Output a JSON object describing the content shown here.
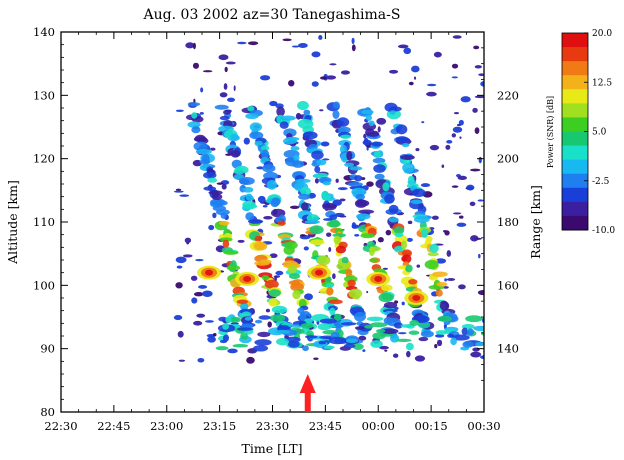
{
  "chart_data": {
    "type": "heatmap",
    "title": "Aug. 03 2002  az=30 Tanegashima-S",
    "xlabel": "Time [LT]",
    "ylabel": "Altitude [km]",
    "y2label": "Range [km]",
    "x_ticks": [
      "22:30",
      "22:45",
      "23:00",
      "23:15",
      "23:30",
      "23:45",
      "00:00",
      "00:15",
      "00:30"
    ],
    "xlim_hours": [
      22.5,
      24.5
    ],
    "y_ticks": [
      80,
      90,
      100,
      110,
      120,
      130,
      140
    ],
    "ylim": [
      80,
      140
    ],
    "y2_ticks": [
      140,
      160,
      180,
      200,
      220
    ],
    "colorbar": {
      "label": "Power (SNR) [dB]",
      "range": [
        -10,
        20
      ],
      "tick_labels": [
        "20.0",
        "12.5",
        "5.0",
        "-2.5",
        "-10.0"
      ],
      "tick_values": [
        20,
        12.5,
        5,
        -2.5,
        -10
      ],
      "colors": [
        "#3a0a6e",
        "#3a1fa0",
        "#1a3fd8",
        "#1f7ff0",
        "#18b8f0",
        "#19e0c8",
        "#18c870",
        "#3ccf22",
        "#a0e020",
        "#e8ea18",
        "#f3b21a",
        "#f07a14",
        "#e83a10",
        "#e01010"
      ]
    },
    "marker": {
      "time": "23:40",
      "color": "#ff2020"
    },
    "grid": false
  }
}
